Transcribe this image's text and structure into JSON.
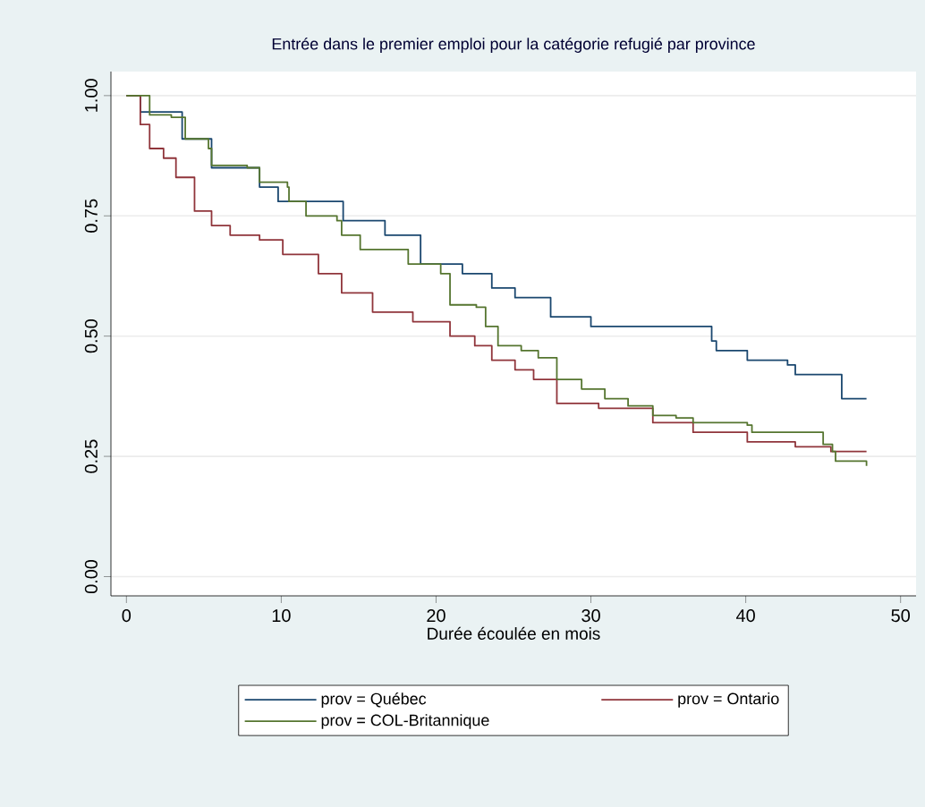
{
  "chart_data": {
    "type": "step",
    "title": "Entrée dans le premier emploi pour la catégorie refugié par province",
    "xlabel": "Durée écoulée en mois",
    "xlim": [
      -1,
      51
    ],
    "ylim": [
      -0.04,
      1.05
    ],
    "xticks": [
      0,
      10,
      20,
      30,
      40,
      50
    ],
    "yticks": [
      {
        "value": 0,
        "label": "0.00"
      },
      {
        "value": 0.25,
        "label": "0.25"
      },
      {
        "value": 0.5,
        "label": "0.50"
      },
      {
        "value": 0.75,
        "label": "0.75"
      },
      {
        "value": 1,
        "label": "1.00"
      }
    ],
    "grid": "y",
    "legend": "bottom",
    "series": [
      {
        "name": "prov = Québec",
        "color": "#1a476f",
        "x": [
          0,
          0.9,
          3.6,
          5.5,
          8.6,
          9.8,
          11.6,
          14,
          16.7,
          19,
          21.7,
          23.6,
          25.1,
          27.4,
          30,
          33.2,
          37.8,
          38.1,
          40.1,
          42.7,
          43.2,
          45.5,
          46.2,
          47.8
        ],
        "values": [
          1.0,
          0.966,
          0.91,
          0.85,
          0.81,
          0.78,
          0.78,
          0.74,
          0.71,
          0.65,
          0.63,
          0.6,
          0.58,
          0.54,
          0.52,
          0.52,
          0.49,
          0.47,
          0.45,
          0.44,
          0.42,
          0.42,
          0.37,
          0.37
        ]
      },
      {
        "name": "prov = Ontario",
        "color": "#90353b",
        "x": [
          0,
          0.9,
          1.5,
          2.4,
          3.2,
          4.4,
          5.5,
          6.7,
          7.8,
          8.6,
          10.1,
          12.4,
          13.9,
          15.9,
          18.5,
          20.9,
          22.5,
          23.6,
          25.1,
          26.3,
          27.8,
          30.5,
          34,
          36.6,
          40.1,
          43.2,
          45.5,
          47.8
        ],
        "values": [
          1.0,
          0.94,
          0.89,
          0.87,
          0.83,
          0.76,
          0.73,
          0.71,
          0.71,
          0.7,
          0.67,
          0.63,
          0.59,
          0.55,
          0.53,
          0.5,
          0.48,
          0.45,
          0.43,
          0.41,
          0.36,
          0.35,
          0.32,
          0.3,
          0.28,
          0.27,
          0.26,
          0.26
        ]
      },
      {
        "name": "prov = COL-Britannique",
        "color": "#55752f",
        "x": [
          0,
          1.5,
          2.9,
          3.8,
          5.3,
          5.5,
          7.8,
          8.6,
          10.4,
          10.5,
          11.6,
          13.6,
          13.9,
          15.1,
          17.4,
          18.2,
          20.3,
          20.9,
          22.6,
          23.2,
          24,
          25.5,
          26.6,
          27.8,
          29.4,
          30.9,
          32.4,
          34,
          35.5,
          36.6,
          40.1,
          40.4,
          43.9,
          45,
          45.6,
          45.8,
          47,
          47.8
        ],
        "values": [
          1.0,
          0.96,
          0.955,
          0.91,
          0.89,
          0.855,
          0.85,
          0.82,
          0.81,
          0.78,
          0.75,
          0.74,
          0.71,
          0.68,
          0.68,
          0.65,
          0.63,
          0.565,
          0.56,
          0.52,
          0.48,
          0.47,
          0.455,
          0.41,
          0.39,
          0.37,
          0.355,
          0.335,
          0.33,
          0.32,
          0.315,
          0.3,
          0.3,
          0.275,
          0.26,
          0.24,
          0.24,
          0.23
        ]
      }
    ]
  }
}
